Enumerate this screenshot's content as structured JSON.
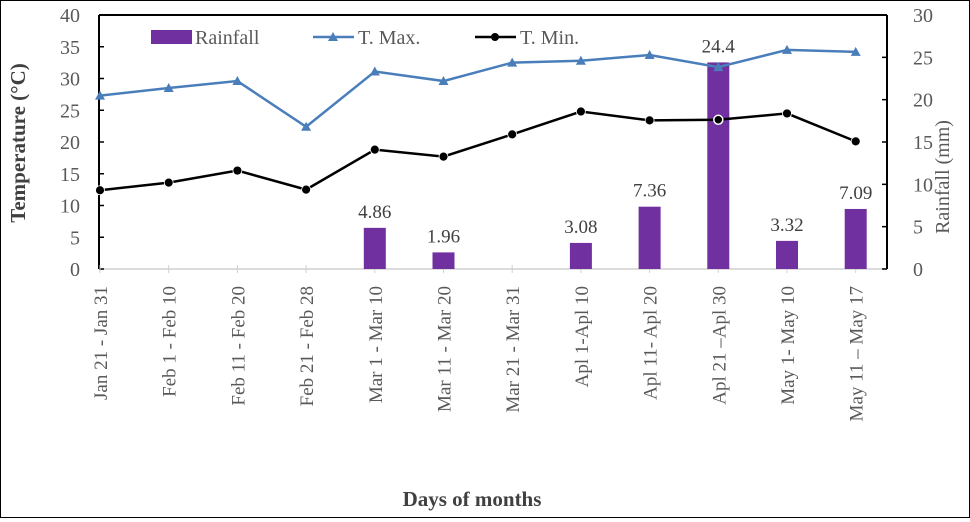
{
  "chart_data": {
    "type": "bar+line",
    "xlabel": "Days of months",
    "ylabel_left": "Temperature (°C)",
    "ylabel_right": "Rainfall (mm)",
    "ylim_left": [
      0,
      40
    ],
    "ylim_right": [
      0,
      30
    ],
    "yticks_left": [
      0,
      5,
      10,
      15,
      20,
      25,
      30,
      35,
      40
    ],
    "yticks_right": [
      0,
      5,
      10,
      15,
      20,
      25,
      30
    ],
    "grid": false,
    "legend_placement": "top",
    "categories": [
      "Jan 21 - Jan 31",
      "Feb 1 - Feb 10",
      "Feb 11 - Feb 20",
      "Feb 21 - Feb 28",
      "Mar 1 - Mar 10",
      "Mar 11 - Mar 20",
      "Mar 21 - Mar 31",
      "Apl 1-Apl 10",
      "Apl 11- Apl 20",
      "Apl 21 –Apl 30",
      "May 1- May 10",
      "May 11 – May 17"
    ],
    "series": [
      {
        "name": "Rainfall",
        "type": "bar",
        "axis": "right",
        "color": "#7030a0",
        "values": [
          0,
          0,
          0,
          0,
          4.86,
          1.96,
          0,
          3.08,
          7.36,
          24.4,
          3.32,
          7.09
        ],
        "labels": [
          "",
          "",
          "",
          "",
          "4.86",
          "1.96",
          "",
          "3.08",
          "7.36",
          "24.4",
          "3.32",
          "7.09"
        ]
      },
      {
        "name": "T. Max.",
        "type": "line",
        "axis": "left",
        "marker": "triangle",
        "color": "#4a7ebb",
        "values": [
          27.3,
          28.5,
          29.6,
          22.4,
          31.1,
          29.6,
          32.5,
          32.8,
          33.7,
          31.8,
          34.5,
          34.2
        ]
      },
      {
        "name": "T. Min.",
        "type": "line",
        "axis": "left",
        "marker": "circle",
        "color": "#000000",
        "values": [
          12.4,
          13.6,
          15.5,
          12.5,
          18.8,
          17.7,
          21.2,
          24.8,
          23.4,
          23.5,
          24.5,
          20.1
        ]
      }
    ]
  }
}
